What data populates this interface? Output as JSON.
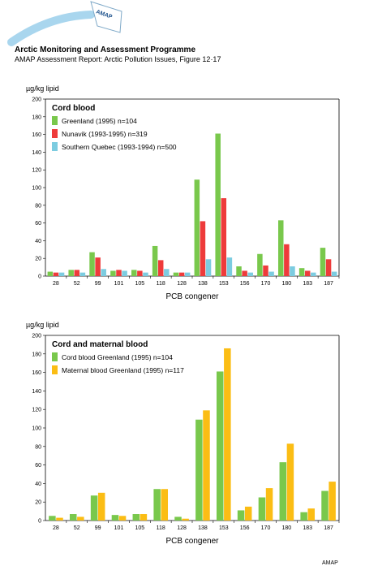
{
  "header": {
    "logo_text": "AMAP",
    "title": "Arctic Monitoring and Assessment Programme",
    "subtitle": "AMAP Assessment Report: Arctic Pollution Issues, Figure 12·17"
  },
  "credit": "AMAP",
  "colors": {
    "green": "#79c84c",
    "red": "#ee3b3b",
    "blue": "#7ccce0",
    "orange": "#fbbd14",
    "logo_arc": "#a9d6ee"
  },
  "chart_data": [
    {
      "type": "bar",
      "title": "Cord blood",
      "ylabel": "µg/kg lipid",
      "xlabel": "PCB congener",
      "ylim": [
        0,
        200
      ],
      "yticks": [
        0,
        20,
        40,
        60,
        80,
        100,
        120,
        140,
        160,
        180,
        200
      ],
      "legend": "top-left",
      "categories": [
        "28",
        "52",
        "99",
        "101",
        "105",
        "118",
        "128",
        "138",
        "153",
        "156",
        "170",
        "180",
        "183",
        "187"
      ],
      "series": [
        {
          "name": "Greenland (1995) n=104",
          "color": "#79c84c",
          "values": [
            5,
            7,
            27,
            6,
            7,
            34,
            4,
            109,
            161,
            11,
            25,
            63,
            9,
            32
          ]
        },
        {
          "name": "Nunavik (1993-1995) n=319",
          "color": "#ee3b3b",
          "values": [
            4,
            7,
            21,
            7,
            6,
            18,
            4,
            62,
            88,
            6,
            12,
            36,
            6,
            19
          ]
        },
        {
          "name": "Southern Quebec (1993-1994) n=500",
          "color": "#7ccce0",
          "values": [
            4,
            4,
            8,
            6,
            4,
            8,
            4,
            19,
            21,
            4,
            5,
            11,
            4,
            5
          ]
        }
      ]
    },
    {
      "type": "bar",
      "title": "Cord and maternal blood",
      "ylabel": "µg/kg lipid",
      "xlabel": "PCB congener",
      "ylim": [
        0,
        200
      ],
      "yticks": [
        0,
        20,
        40,
        60,
        80,
        100,
        120,
        140,
        160,
        180,
        200
      ],
      "legend": "top-left",
      "categories": [
        "28",
        "52",
        "99",
        "101",
        "105",
        "118",
        "128",
        "138",
        "153",
        "156",
        "170",
        "180",
        "183",
        "187"
      ],
      "series": [
        {
          "name": "Cord blood Greenland (1995) n=104",
          "color": "#79c84c",
          "values": [
            5,
            7,
            27,
            6,
            7,
            34,
            4,
            109,
            161,
            11,
            25,
            63,
            9,
            32
          ]
        },
        {
          "name": "Maternal blood Greenland (1995) n=117",
          "color": "#fbbd14",
          "values": [
            3,
            4,
            30,
            5,
            7,
            34,
            2,
            119,
            186,
            15,
            35,
            83,
            13,
            42
          ]
        }
      ]
    }
  ]
}
